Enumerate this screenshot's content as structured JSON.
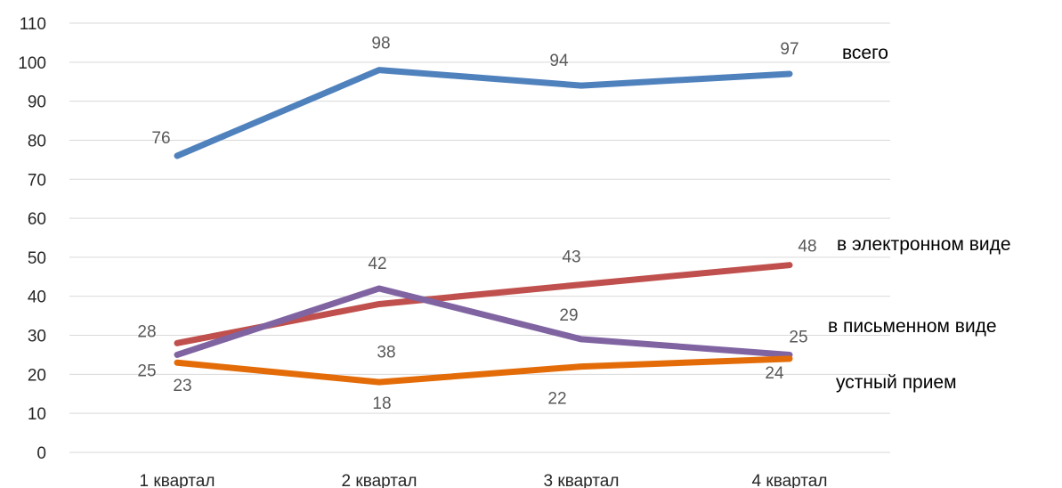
{
  "chart_data": {
    "type": "line",
    "categories": [
      "1 квартал",
      "2 квартал",
      "3 квартал",
      "4 квартал"
    ],
    "ylim": [
      0,
      110
    ],
    "yticks": [
      0,
      10,
      20,
      30,
      40,
      50,
      60,
      70,
      80,
      90,
      100,
      110
    ],
    "grid": true,
    "legend_placement": "right",
    "series": [
      {
        "name": "всего",
        "color": "#4f81bd",
        "values": [
          76,
          98,
          94,
          97
        ]
      },
      {
        "name": "в электронном виде",
        "color": "#c0504d",
        "values": [
          28,
          38,
          43,
          48
        ]
      },
      {
        "name": "в письменном виде",
        "color": "#8064a2",
        "values": [
          25,
          42,
          29,
          25
        ]
      },
      {
        "name": "устный прием",
        "color": "#e36c09",
        "values": [
          23,
          18,
          22,
          24
        ]
      }
    ]
  }
}
